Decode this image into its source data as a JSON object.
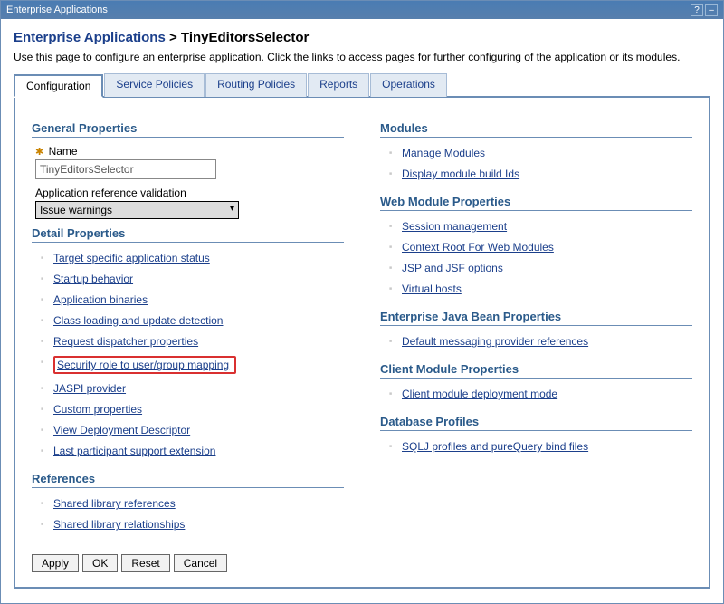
{
  "window": {
    "title": "Enterprise Applications"
  },
  "breadcrumb": {
    "parent": "Enterprise Applications",
    "separator": ">",
    "current": "TinyEditorsSelector"
  },
  "page_desc": "Use this page to configure an enterprise application. Click the links to access pages for further configuring of the application or its modules.",
  "tabs": [
    {
      "label": "Configuration",
      "active": true
    },
    {
      "label": "Service Policies",
      "active": false
    },
    {
      "label": "Routing Policies",
      "active": false
    },
    {
      "label": "Reports",
      "active": false
    },
    {
      "label": "Operations",
      "active": false
    }
  ],
  "left": {
    "general": {
      "heading": "General Properties",
      "name_label": "Name",
      "name_value": "TinyEditorsSelector",
      "validation_label": "Application reference validation",
      "validation_value": "Issue warnings"
    },
    "detail": {
      "heading": "Detail Properties",
      "links": [
        "Target specific application status",
        "Startup behavior",
        "Application binaries",
        "Class loading and update detection",
        "Request dispatcher properties",
        "Security role to user/group mapping",
        "JASPI provider",
        "Custom properties",
        "View Deployment Descriptor",
        "Last participant support extension"
      ],
      "highlight_index": 5
    },
    "references": {
      "heading": "References",
      "links": [
        "Shared library references",
        "Shared library relationships"
      ]
    }
  },
  "right": {
    "modules": {
      "heading": "Modules",
      "links": [
        "Manage Modules",
        "Display module build Ids"
      ]
    },
    "webmod": {
      "heading": "Web Module Properties",
      "links": [
        "Session management",
        "Context Root For Web Modules",
        "JSP and JSF options",
        "Virtual hosts"
      ]
    },
    "ejb": {
      "heading": "Enterprise Java Bean Properties",
      "links": [
        "Default messaging provider references"
      ]
    },
    "client": {
      "heading": "Client Module Properties",
      "links": [
        "Client module deployment mode"
      ]
    },
    "db": {
      "heading": "Database Profiles",
      "links": [
        "SQLJ profiles and pureQuery bind files"
      ]
    }
  },
  "buttons": {
    "apply": "Apply",
    "ok": "OK",
    "reset": "Reset",
    "cancel": "Cancel"
  }
}
